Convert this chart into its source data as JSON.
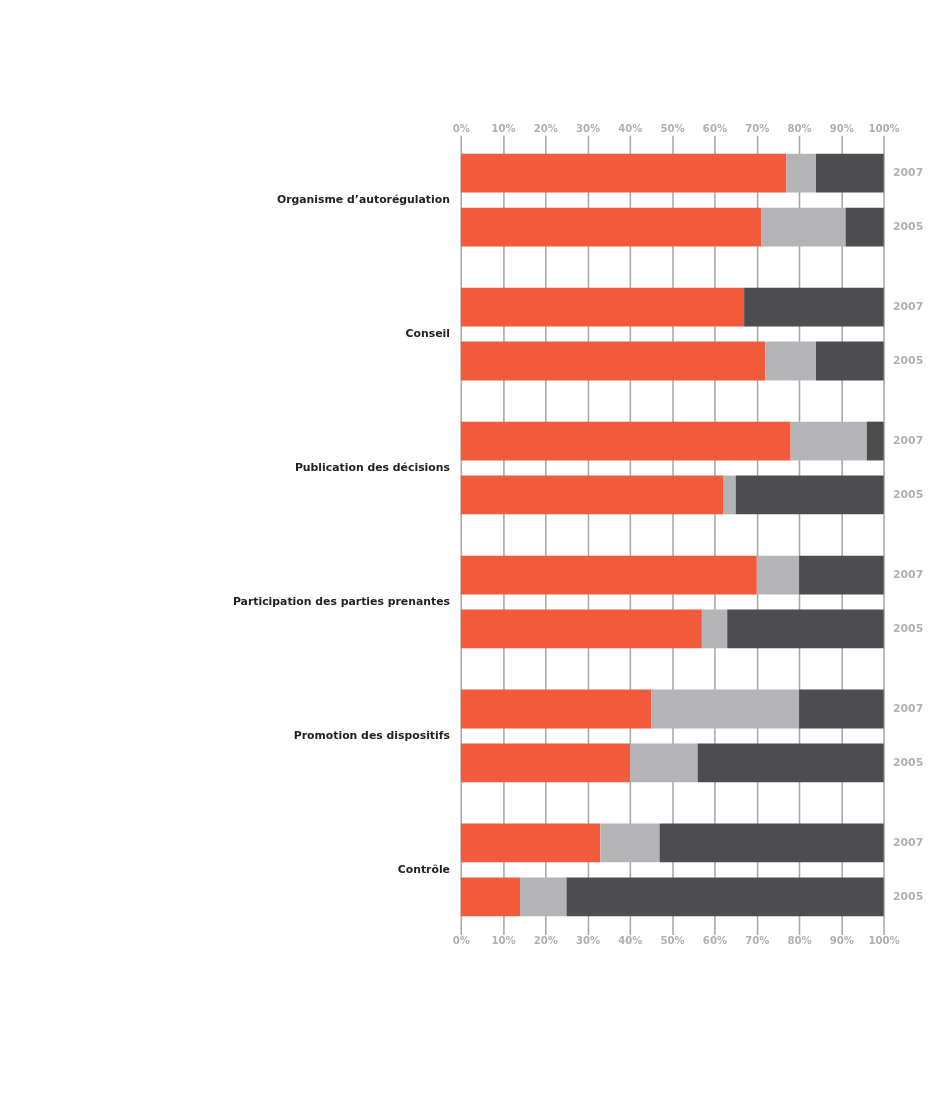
{
  "chart_data": {
    "type": "bar",
    "orientation": "horizontal",
    "stacked": true,
    "categories": [
      "2007",
      "2005",
      "2007",
      "2005",
      "2007",
      "2005",
      "2007",
      "2005",
      "2007",
      "2005",
      "2007",
      "2005"
    ],
    "annotations": [
      "Organisme d’autorégulation",
      "Conseil",
      "Publication des décisions",
      "Participation des parties prenantes",
      "Promotion des dispositifs",
      "Contrôle"
    ],
    "series": [
      {
        "color": "#f15a3a",
        "values": [
          77,
          71,
          67,
          72,
          78,
          62,
          70,
          57,
          45,
          40,
          33,
          14
        ]
      },
      {
        "color": "#b4b4b6",
        "values": [
          7,
          20,
          0,
          12,
          18,
          3,
          10,
          6,
          35,
          16,
          14,
          11
        ]
      },
      {
        "color": "#4d4d4f",
        "values": [
          16,
          9,
          33,
          16,
          4,
          35,
          20,
          37,
          20,
          44,
          53,
          75
        ]
      }
    ],
    "xlim": [
      0,
      100
    ],
    "xticks": [
      {
        "value": 0,
        "label": "0%"
      },
      {
        "value": 10,
        "label": "10%"
      },
      {
        "value": 20,
        "label": "20%"
      },
      {
        "value": 30,
        "label": "30%"
      },
      {
        "value": 40,
        "label": "40%"
      },
      {
        "value": 50,
        "label": "50%"
      },
      {
        "value": 60,
        "label": "60%"
      },
      {
        "value": 70,
        "label": "70%"
      },
      {
        "value": 80,
        "label": "80%"
      },
      {
        "value": 90,
        "label": "90%"
      },
      {
        "value": 100,
        "label": "100%"
      }
    ],
    "x2lim": [
      0,
      100
    ],
    "x2ticks": [
      {
        "value": 0,
        "label": "0%"
      },
      {
        "value": 10,
        "label": "10%"
      },
      {
        "value": 20,
        "label": "20%"
      },
      {
        "value": 30,
        "label": "30%"
      },
      {
        "value": 40,
        "label": "40%"
      },
      {
        "value": 50,
        "label": "50%"
      },
      {
        "value": 60,
        "label": "60%"
      },
      {
        "value": 70,
        "label": "70%"
      },
      {
        "value": 80,
        "label": "80%"
      },
      {
        "value": 90,
        "label": "90%"
      },
      {
        "value": 100,
        "label": "100%"
      }
    ],
    "grid": "x",
    "legend": false
  }
}
